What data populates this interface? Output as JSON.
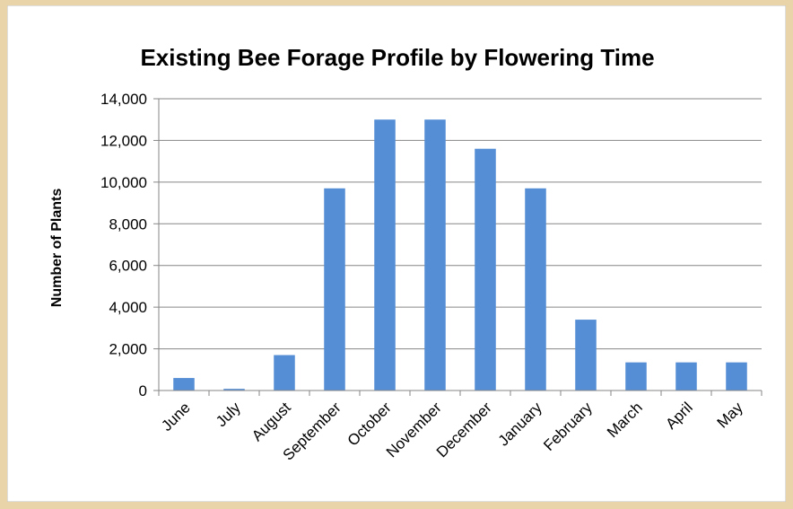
{
  "chart_data": {
    "type": "bar",
    "title": "Existing Bee Forage Profile by Flowering Time",
    "xlabel": "",
    "ylabel": "Number of Plants",
    "categories": [
      "June",
      "July",
      "August",
      "September",
      "October",
      "November",
      "December",
      "January",
      "February",
      "March",
      "April",
      "May"
    ],
    "values": [
      600,
      80,
      1700,
      9700,
      13000,
      13000,
      11600,
      9700,
      3400,
      1350,
      1350,
      1350
    ],
    "ylim": [
      0,
      14000
    ],
    "yticks": [
      "0",
      "2,000",
      "4,000",
      "6,000",
      "8,000",
      "10,000",
      "12,000",
      "14,000"
    ],
    "grid": true,
    "legend": "none",
    "bar_color": "#558ed5",
    "gridline_color": "#868686"
  }
}
